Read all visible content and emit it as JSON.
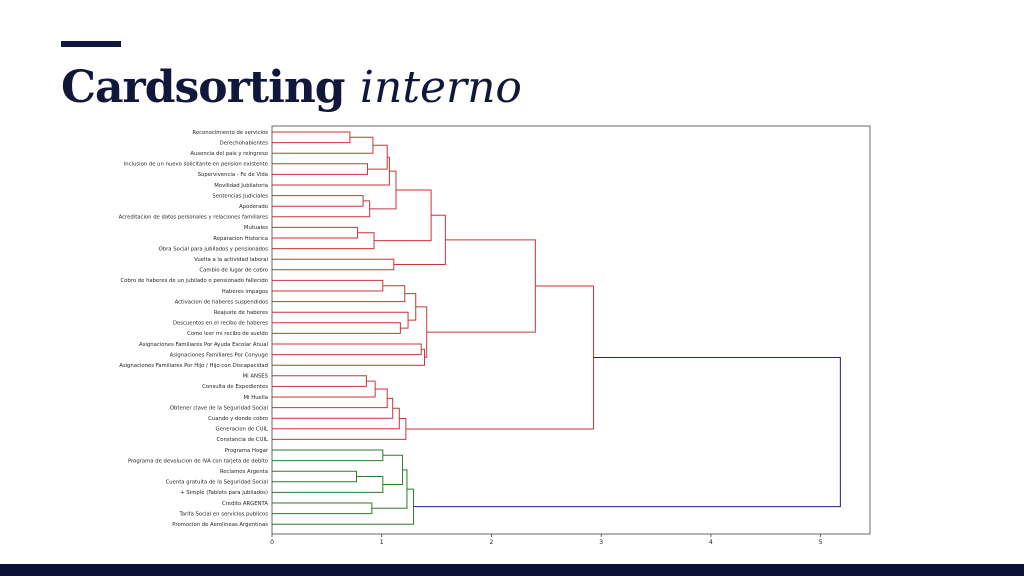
{
  "slide": {
    "title_bold": "Cardsorting",
    "title_italic": "interno"
  },
  "colors": {
    "title": "#11173a",
    "band": "#0c1236",
    "red_cluster": "#c8363a",
    "green_cluster": "#2a7d2a",
    "root_link": "#1f1f8f"
  },
  "chart_data": {
    "type": "dendrogram",
    "orientation": "left",
    "xlim": [
      0,
      5.45
    ],
    "xticks": [
      0,
      1,
      2,
      3,
      4,
      5
    ],
    "leaves": [
      "Reconocimiento de servicios",
      "Derechohabientes",
      "Ausencia del pais y reingreso",
      "Inclusion de un nuevo solicitante en pension existente",
      "Supervivencia - Fe de Vida",
      "Movilidad Jubilatoria",
      "Sentencias Judiciales",
      "Apoderado",
      "Acreditacion de datos personales y relaciones familiares",
      "Mutuales",
      "Reparacion Historica",
      "Obra Social para jubilados y pensionados",
      "Vuelta a la actividad laboral",
      "Cambio de lugar de cobro",
      "Cobro de haberes de un jubilado o pensionado fallecido",
      "Haberes impagos",
      "Activacion de haberes suspendidos",
      "Reajuste de haberes",
      "Descuentos en el recibo de haberes",
      "Como leer mi recibo de sueldo",
      "Asignaciones Familiares Por Ayuda Escolar Anual",
      "Asignaciones Familiares Por Conyuge",
      "Asignaciones Familiares Por Hijo / Hijo con Discapacidad",
      "Mi ANSES",
      "Consulta de Expedientes",
      "Mi Huella",
      "Obtener clave de la Seguridad Social",
      "Cuando y donde cobro",
      "Generacion de CUIL",
      "Constancia de CUIL",
      "Programa Hogar",
      "Programa de devolucion de IVA con tarjeta de debito",
      "Reclamos Argenta",
      "Cuenta gratuita de la Seguridad Social",
      "+ Simple (Tablets para jubilados)",
      "Credito ARGENTA",
      "Tarifa Social en servicios publicos",
      "Promocion de Aerolineas Argentinas"
    ],
    "merges": [
      {
        "id": "n1",
        "left": 0,
        "right": 1,
        "height": 0.71,
        "color": "red"
      },
      {
        "id": "n2",
        "left": "n1",
        "right": 2,
        "height": 0.92,
        "color": "red"
      },
      {
        "id": "n3",
        "left": 3,
        "right": 4,
        "height": 0.87,
        "color": "red"
      },
      {
        "id": "n4",
        "left": "n2",
        "right": "n3",
        "height": 1.05,
        "color": "red"
      },
      {
        "id": "n5",
        "left": "n4",
        "right": 5,
        "height": 1.07,
        "color": "red"
      },
      {
        "id": "n6",
        "left": 6,
        "right": 7,
        "height": 0.83,
        "color": "red"
      },
      {
        "id": "n7",
        "left": "n6",
        "right": 8,
        "height": 0.89,
        "color": "red"
      },
      {
        "id": "n8",
        "left": "n5",
        "right": "n7",
        "height": 1.13,
        "color": "red"
      },
      {
        "id": "n9",
        "left": 9,
        "right": 10,
        "height": 0.78,
        "color": "red"
      },
      {
        "id": "n10",
        "left": "n9",
        "right": 11,
        "height": 0.93,
        "color": "red"
      },
      {
        "id": "n11",
        "left": "n8",
        "right": "n10",
        "height": 1.45,
        "color": "red"
      },
      {
        "id": "n12",
        "left": 12,
        "right": 13,
        "height": 1.11,
        "color": "red"
      },
      {
        "id": "n13",
        "left": "n11",
        "right": "n12",
        "height": 1.58,
        "color": "red"
      },
      {
        "id": "n14",
        "left": 14,
        "right": 15,
        "height": 1.01,
        "color": "red"
      },
      {
        "id": "n15",
        "left": "n14",
        "right": 16,
        "height": 1.21,
        "color": "red"
      },
      {
        "id": "n16",
        "left": 18,
        "right": 19,
        "height": 1.17,
        "color": "red"
      },
      {
        "id": "n17",
        "left": 17,
        "right": "n16",
        "height": 1.24,
        "color": "red"
      },
      {
        "id": "n18",
        "left": "n15",
        "right": "n17",
        "height": 1.31,
        "color": "red"
      },
      {
        "id": "n19",
        "left": 20,
        "right": 21,
        "height": 1.36,
        "color": "red"
      },
      {
        "id": "n20",
        "left": "n19",
        "right": 22,
        "height": 1.39,
        "color": "red"
      },
      {
        "id": "n21",
        "left": "n18",
        "right": "n20",
        "height": 1.41,
        "color": "red"
      },
      {
        "id": "n22",
        "left": "n13",
        "right": "n21",
        "height": 2.4,
        "color": "red"
      },
      {
        "id": "n23",
        "left": 23,
        "right": 24,
        "height": 0.86,
        "color": "red"
      },
      {
        "id": "n24",
        "left": "n23",
        "right": 25,
        "height": 0.94,
        "color": "red"
      },
      {
        "id": "n25",
        "left": "n24",
        "right": 26,
        "height": 1.05,
        "color": "red"
      },
      {
        "id": "n26",
        "left": "n25",
        "right": 27,
        "height": 1.1,
        "color": "red"
      },
      {
        "id": "n27",
        "left": "n26",
        "right": 28,
        "height": 1.16,
        "color": "red"
      },
      {
        "id": "n28",
        "left": "n27",
        "right": 29,
        "height": 1.22,
        "color": "red"
      },
      {
        "id": "n29",
        "left": "n22",
        "right": "n28",
        "height": 2.93,
        "color": "red"
      },
      {
        "id": "n30",
        "left": 30,
        "right": 31,
        "height": 1.01,
        "color": "green"
      },
      {
        "id": "n31",
        "left": 32,
        "right": 33,
        "height": 0.77,
        "color": "green"
      },
      {
        "id": "n32",
        "left": "n31",
        "right": 34,
        "height": 1.01,
        "color": "green"
      },
      {
        "id": "n33",
        "left": "n30",
        "right": "n32",
        "height": 1.19,
        "color": "green"
      },
      {
        "id": "n34",
        "left": 35,
        "right": 36,
        "height": 0.91,
        "color": "green"
      },
      {
        "id": "n35",
        "left": "n33",
        "right": "n34",
        "height": 1.23,
        "color": "green"
      },
      {
        "id": "n36",
        "left": "n35",
        "right": 37,
        "height": 1.29,
        "color": "green"
      },
      {
        "id": "n37",
        "left": "n29",
        "right": "n36",
        "height": 5.18,
        "color": "blue"
      }
    ]
  }
}
